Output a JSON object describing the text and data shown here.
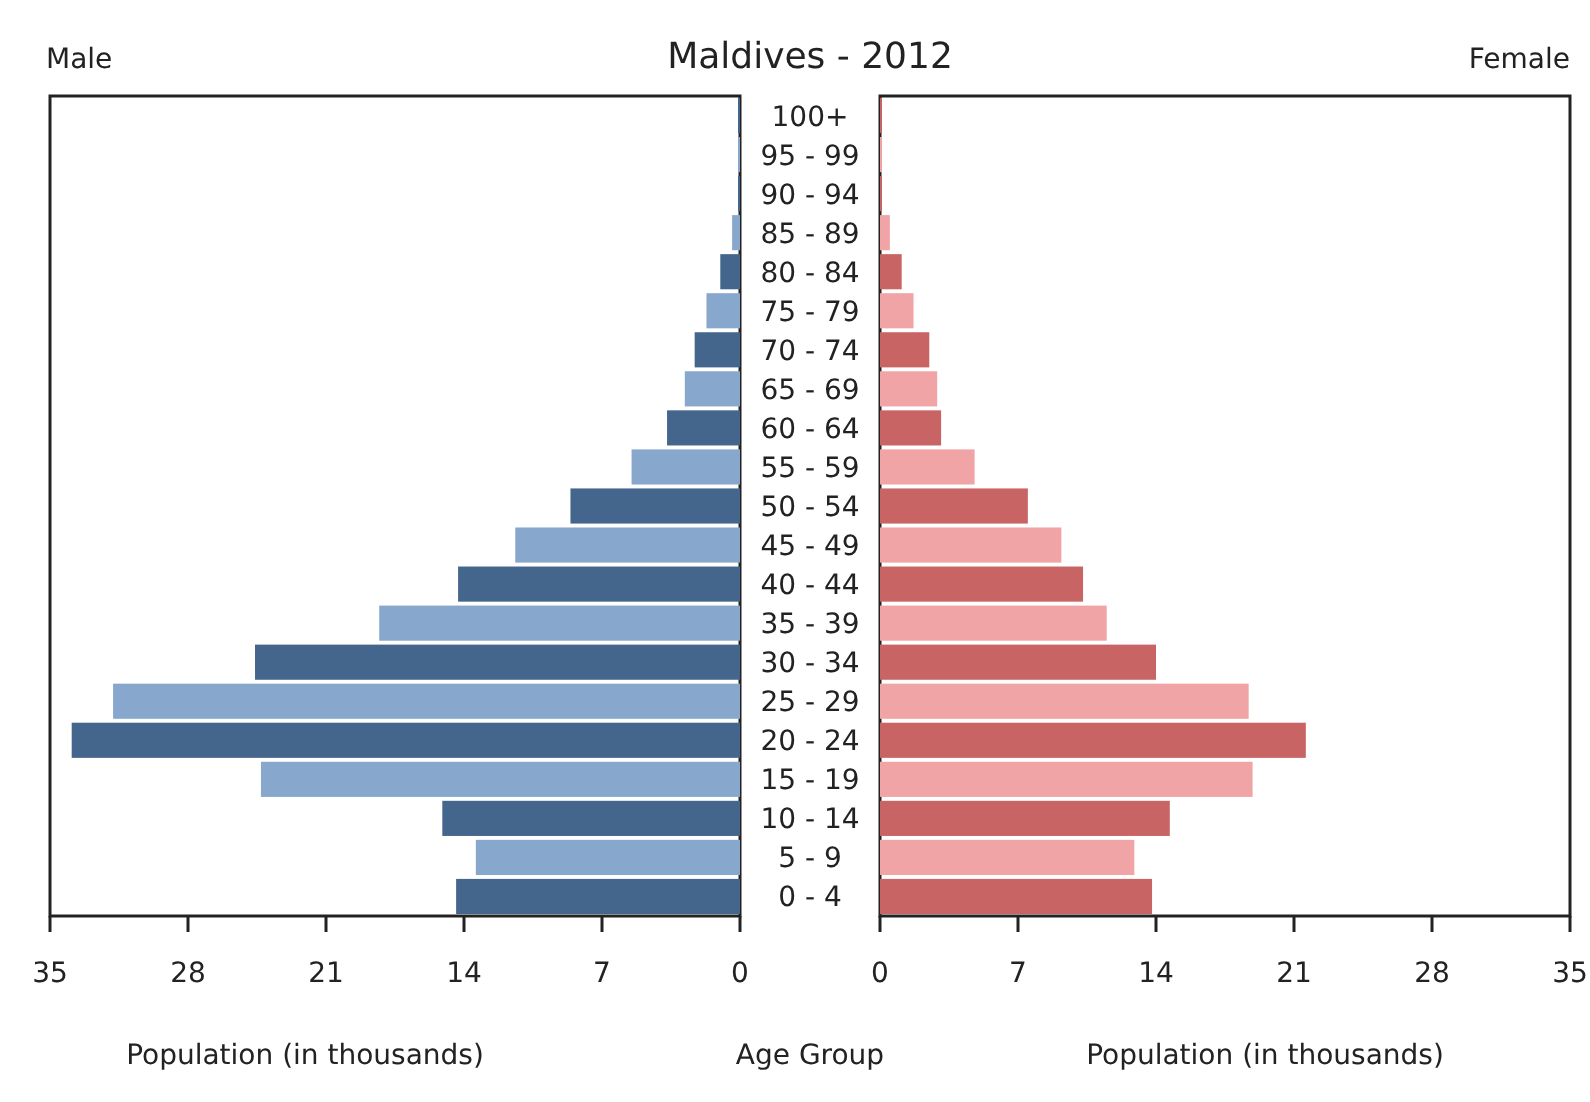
{
  "chart_data": [
    {
      "type": "bar",
      "orientation": "horizontal",
      "title": "Maldives - 2012",
      "subtitle": "Male",
      "xlabel": "Population (in thousands)",
      "ylabel": "Age Group",
      "categories": [
        "100+",
        "95 - 99",
        "90 - 94",
        "85 - 89",
        "80 - 84",
        "75 - 79",
        "70 - 74",
        "65 - 69",
        "60 - 64",
        "55 - 59",
        "50 - 54",
        "45 - 49",
        "40 - 44",
        "35 - 39",
        "30 - 34",
        "25 - 29",
        "20 - 24",
        "15 - 19",
        "10 - 14",
        "5 - 9",
        "0 - 4"
      ],
      "values": [
        0.1,
        0.1,
        0.1,
        0.4,
        1.0,
        1.7,
        2.3,
        2.8,
        3.7,
        5.5,
        8.6,
        11.4,
        14.3,
        18.3,
        24.6,
        31.8,
        33.9,
        24.3,
        15.1,
        13.4,
        14.4
      ],
      "colors": [
        "#44668c",
        "#87a8cc",
        "#44668c",
        "#87a8cc",
        "#44668c",
        "#87a8cc",
        "#44668c",
        "#87a8cc",
        "#44668c",
        "#87a8cc",
        "#44668c",
        "#87a8cc",
        "#44668c",
        "#87a8cc",
        "#44668c",
        "#87a8cc",
        "#44668c",
        "#87a8cc",
        "#44668c",
        "#87a8cc",
        "#44668c"
      ],
      "xlim": [
        35,
        0
      ],
      "xticks": [
        35,
        28,
        21,
        14,
        7,
        0
      ]
    },
    {
      "type": "bar",
      "orientation": "horizontal",
      "subtitle": "Female",
      "xlabel": "Population (in thousands)",
      "tick_labels": "x",
      "categories": [
        "100+",
        "95 - 99",
        "90 - 94",
        "85 - 89",
        "80 - 84",
        "75 - 79",
        "70 - 74",
        "65 - 69",
        "60 - 64",
        "55 - 59",
        "50 - 54",
        "45 - 49",
        "40 - 44",
        "35 - 39",
        "30 - 34",
        "25 - 29",
        "20 - 24",
        "15 - 19",
        "10 - 14",
        "5 - 9",
        "0 - 4"
      ],
      "values": [
        0.1,
        0.1,
        0.1,
        0.5,
        1.1,
        1.7,
        2.5,
        2.9,
        3.1,
        4.8,
        7.5,
        9.2,
        10.3,
        11.5,
        14.0,
        18.7,
        21.6,
        18.9,
        14.7,
        12.9,
        13.8
      ],
      "colors": [
        "#c96464",
        "#f0a4a6",
        "#c96464",
        "#f0a4a6",
        "#c96464",
        "#f0a4a6",
        "#c96464",
        "#f0a4a6",
        "#c96464",
        "#f0a4a6",
        "#c96464",
        "#f0a4a6",
        "#c96464",
        "#f0a4a6",
        "#c96464",
        "#f0a4a6",
        "#c96464",
        "#f0a4a6",
        "#c96464",
        "#f0a4a6",
        "#c96464"
      ],
      "xlim": [
        0,
        35
      ],
      "xticks": [
        0,
        7,
        14,
        21,
        28,
        35
      ]
    }
  ]
}
